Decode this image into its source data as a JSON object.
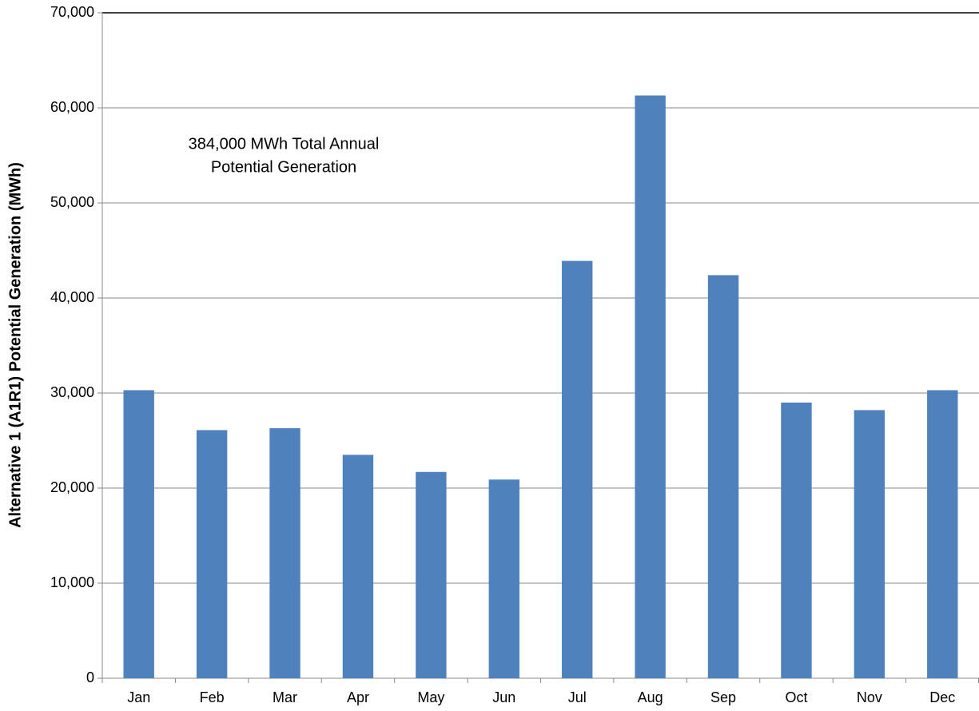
{
  "chart_data": {
    "type": "bar",
    "y_axis_label": "Alternative 1 (A1R1) Potential Generation (MWh)",
    "annotation": [
      "384,000 MWh Total Annual",
      "Potential Generation"
    ],
    "categories": [
      "Jan",
      "Feb",
      "Mar",
      "Apr",
      "May",
      "Jun",
      "Jul",
      "Aug",
      "Sep",
      "Oct",
      "Nov",
      "Dec"
    ],
    "values": [
      30300,
      26100,
      26300,
      23500,
      21700,
      20900,
      43900,
      61300,
      42400,
      29000,
      28200,
      30300
    ],
    "color": "#4f81bd",
    "ylim": [
      0,
      70000
    ],
    "yticks": [
      0,
      {
        "value": 10000,
        "label": "10,000"
      },
      {
        "value": 20000,
        "label": "20,000"
      },
      {
        "value": 30000,
        "label": "30,000"
      },
      {
        "value": 40000,
        "label": "40,000"
      },
      {
        "value": 50000,
        "label": "50,000"
      },
      {
        "value": 60000,
        "label": "60,000"
      },
      {
        "value": 70000,
        "label": "70,000"
      }
    ],
    "grid": true
  }
}
